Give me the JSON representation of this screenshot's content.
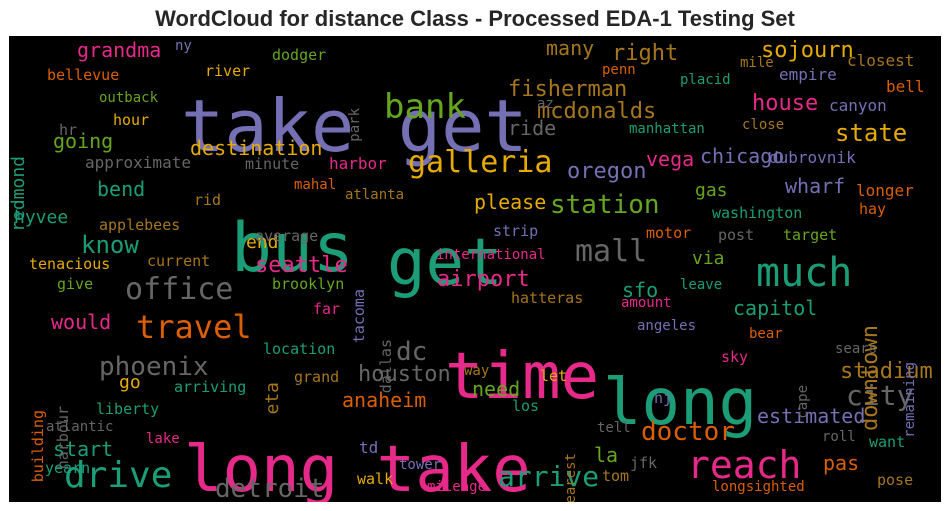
{
  "title": "WordCloud for distance Class - Processed EDA-1 Testing Set",
  "chart_data": {
    "type": "wordcloud",
    "title": "WordCloud for distance Class - Processed EDA-1 Testing Set",
    "background": "#000000",
    "palette": "Dark2",
    "words": [
      {
        "text": "take get",
        "color": "#7570b3"
      },
      {
        "text": "bus",
        "color": "#1b9e77"
      },
      {
        "text": "get",
        "color": "#1b9e77"
      },
      {
        "text": "time",
        "color": "#e7298a"
      },
      {
        "text": "long",
        "color": "#1b9e77"
      },
      {
        "text": "long take",
        "color": "#e7298a"
      },
      {
        "text": "bank",
        "color": "#66a61e"
      },
      {
        "text": "much",
        "color": "#1b9e77"
      },
      {
        "text": "galleria",
        "color": "#e6ab02"
      },
      {
        "text": "mall",
        "color": "#666666"
      },
      {
        "text": "reach",
        "color": "#e7298a"
      },
      {
        "text": "drive",
        "color": "#1b9e77"
      },
      {
        "text": "travel",
        "color": "#d95f02"
      },
      {
        "text": "office",
        "color": "#666666"
      },
      {
        "text": "phoenix",
        "color": "#666666"
      },
      {
        "text": "detroit",
        "color": "#666666"
      },
      {
        "text": "arrive",
        "color": "#1b9e77"
      },
      {
        "text": "doctor",
        "color": "#d95f02"
      },
      {
        "text": "station",
        "color": "#66a61e"
      },
      {
        "text": "state",
        "color": "#e6ab02"
      },
      {
        "text": "fisherman",
        "color": "#a6761d"
      },
      {
        "text": "mcdonalds",
        "color": "#a6761d"
      },
      {
        "text": "house",
        "color": "#e7298a"
      },
      {
        "text": "sojourn",
        "color": "#e6ab02"
      },
      {
        "text": "city",
        "color": "#666666"
      },
      {
        "text": "stadium",
        "color": "#a6761d"
      },
      {
        "text": "dc",
        "color": "#666666"
      },
      {
        "text": "houston",
        "color": "#666666"
      },
      {
        "text": "airport",
        "color": "#e7298a"
      },
      {
        "text": "seattle",
        "color": "#e7298a"
      },
      {
        "text": "know",
        "color": "#1b9e77"
      },
      {
        "text": "grandma",
        "color": "#e7298a"
      },
      {
        "text": "right",
        "color": "#a6761d"
      },
      {
        "text": "many",
        "color": "#a6761d"
      },
      {
        "text": "destination",
        "color": "#e6ab02"
      },
      {
        "text": "oregon",
        "color": "#7570b3"
      },
      {
        "text": "chicago",
        "color": "#7570b3"
      },
      {
        "text": "vega",
        "color": "#e7298a"
      },
      {
        "text": "going",
        "color": "#66a61e"
      },
      {
        "text": "bend",
        "color": "#1b9e77"
      },
      {
        "text": "please",
        "color": "#e6ab02"
      },
      {
        "text": "wharf",
        "color": "#7570b3"
      },
      {
        "text": "gas",
        "color": "#66a61e"
      },
      {
        "text": "ride",
        "color": "#666666"
      },
      {
        "text": "capitol",
        "color": "#1b9e77"
      },
      {
        "text": "downtown",
        "color": "#a6761d"
      },
      {
        "text": "sfo",
        "color": "#1b9e77"
      },
      {
        "text": "via",
        "color": "#66a61e"
      },
      {
        "text": "estimated",
        "color": "#7570b3"
      },
      {
        "text": "would",
        "color": "#e7298a"
      },
      {
        "text": "anaheim",
        "color": "#d95f02"
      },
      {
        "text": "need",
        "color": "#66a61e"
      },
      {
        "text": "start",
        "color": "#1b9e77"
      },
      {
        "text": "la",
        "color": "#66a61e"
      },
      {
        "text": "pas",
        "color": "#d95f02"
      },
      {
        "text": "hyvee",
        "color": "#1b9e77"
      },
      {
        "text": "end",
        "color": "#e6ab02"
      },
      {
        "text": "go",
        "color": "#e6ab02"
      },
      {
        "text": "eta",
        "color": "#a6761d"
      },
      {
        "text": "redmond",
        "color": "#1b9e77"
      },
      {
        "text": "empire",
        "color": "#7570b3"
      },
      {
        "text": "canyon",
        "color": "#7570b3"
      },
      {
        "text": "closest",
        "color": "#a6761d"
      },
      {
        "text": "bell",
        "color": "#d95f02"
      },
      {
        "text": "dubrovnik",
        "color": "#7570b3"
      },
      {
        "text": "longer",
        "color": "#d95f02"
      },
      {
        "text": "approximate",
        "color": "#666666"
      },
      {
        "text": "minute",
        "color": "#666666"
      },
      {
        "text": "harbor",
        "color": "#e7298a"
      },
      {
        "text": "mahal",
        "color": "#d95f02"
      },
      {
        "text": "atlanta",
        "color": "#a6761d"
      },
      {
        "text": "rid",
        "color": "#a6761d"
      },
      {
        "text": "applebees",
        "color": "#a6761d"
      },
      {
        "text": "average",
        "color": "#666666"
      },
      {
        "text": "current",
        "color": "#a6761d"
      },
      {
        "text": "tenacious",
        "color": "#e6ab02"
      },
      {
        "text": "give",
        "color": "#66a61e"
      },
      {
        "text": "brooklyn",
        "color": "#66a61e"
      },
      {
        "text": "far",
        "color": "#e7298a"
      },
      {
        "text": "dallas",
        "color": "#666666"
      },
      {
        "text": "tacoma",
        "color": "#7570b3"
      },
      {
        "text": "international",
        "color": "#e7298a"
      },
      {
        "text": "strip",
        "color": "#7570b3"
      },
      {
        "text": "motor",
        "color": "#d95f02"
      },
      {
        "text": "post",
        "color": "#666666"
      },
      {
        "text": "target",
        "color": "#66a61e"
      },
      {
        "text": "washington",
        "color": "#1b9e77"
      },
      {
        "text": "hay",
        "color": "#d95f02"
      },
      {
        "text": "leave",
        "color": "#1b9e77"
      },
      {
        "text": "amount",
        "color": "#e7298a"
      },
      {
        "text": "hatteras",
        "color": "#a6761d"
      },
      {
        "text": "angeles",
        "color": "#7570b3"
      },
      {
        "text": "remaining",
        "color": "#7570b3"
      },
      {
        "text": "bear",
        "color": "#d95f02"
      },
      {
        "text": "sky",
        "color": "#e7298a"
      },
      {
        "text": "cape",
        "color": "#666666"
      },
      {
        "text": "sears",
        "color": "#666666"
      },
      {
        "text": "location",
        "color": "#1b9e77"
      },
      {
        "text": "grand",
        "color": "#a6761d"
      },
      {
        "text": "arriving",
        "color": "#1b9e77"
      },
      {
        "text": "liberty",
        "color": "#1b9e77"
      },
      {
        "text": "building",
        "color": "#d95f02"
      },
      {
        "text": "harbour",
        "color": "#666666"
      },
      {
        "text": "atlantic",
        "color": "#666666"
      },
      {
        "text": "yearn",
        "color": "#1b9e77"
      },
      {
        "text": "lake",
        "color": "#e7298a"
      },
      {
        "text": "td",
        "color": "#7570b3"
      },
      {
        "text": "tower",
        "color": "#7570b3"
      },
      {
        "text": "walk",
        "color": "#e6ab02"
      },
      {
        "text": "mileage",
        "color": "#e7298a"
      },
      {
        "text": "tom",
        "color": "#a6761d"
      },
      {
        "text": "jfk",
        "color": "#666666"
      },
      {
        "text": "nj",
        "color": "#7570b3"
      },
      {
        "text": "los",
        "color": "#1b9e77"
      },
      {
        "text": "let",
        "color": "#e6ab02"
      },
      {
        "text": "way",
        "color": "#a6761d"
      },
      {
        "text": "tell",
        "color": "#666666"
      },
      {
        "text": "nearest",
        "color": "#a6761d"
      },
      {
        "text": "roll",
        "color": "#666666"
      },
      {
        "text": "want",
        "color": "#1b9e77"
      },
      {
        "text": "pose",
        "color": "#a6761d"
      },
      {
        "text": "longsighted",
        "color": "#d95f02"
      },
      {
        "text": "ny",
        "color": "#7570b3"
      },
      {
        "text": "bellevue",
        "color": "#d95f02"
      },
      {
        "text": "hr",
        "color": "#666666"
      },
      {
        "text": "outback",
        "color": "#66a61e"
      },
      {
        "text": "hour",
        "color": "#e6ab02"
      },
      {
        "text": "river",
        "color": "#e6ab02"
      },
      {
        "text": "dodger",
        "color": "#66a61e"
      },
      {
        "text": "park",
        "color": "#666666"
      },
      {
        "text": "az",
        "color": "#666666"
      },
      {
        "text": "penn",
        "color": "#d95f02"
      },
      {
        "text": "mile",
        "color": "#a6761d"
      },
      {
        "text": "placid",
        "color": "#1b9e77"
      },
      {
        "text": "manhattan",
        "color": "#1b9e77"
      },
      {
        "text": "close",
        "color": "#a6761d"
      }
    ]
  }
}
